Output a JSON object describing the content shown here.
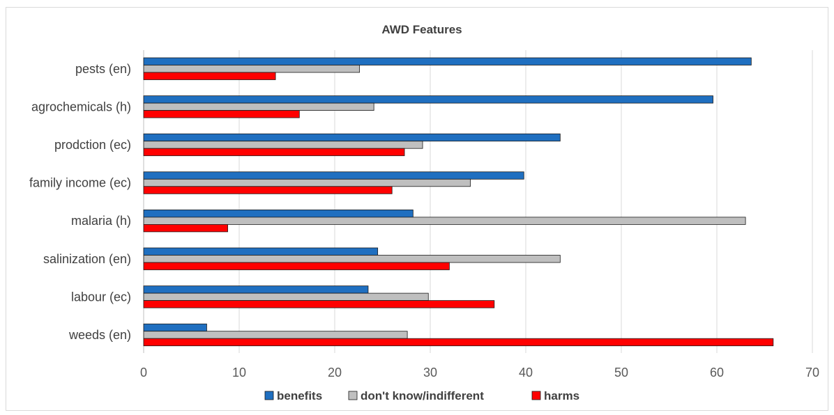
{
  "chart_data": {
    "type": "bar",
    "orientation": "horizontal",
    "title": "AWD Features",
    "xlabel": "",
    "ylabel": "",
    "xlim": [
      0,
      70
    ],
    "x_ticks": [
      "0",
      "10",
      "20",
      "30",
      "40",
      "50",
      "60",
      "70"
    ],
    "grid": "vertical",
    "legend_position": "bottom",
    "categories": [
      "pests (en)",
      "agrochemicals (h)",
      "prodction (ec)",
      "family income (ec)",
      "malaria (h)",
      "salinization (en)",
      "labour (ec)",
      "weeds (en)"
    ],
    "series": [
      {
        "name": "benefits",
        "color": "#1f6fc0",
        "values": [
          63.6,
          59.6,
          43.6,
          39.8,
          28.2,
          24.5,
          23.5,
          6.6
        ]
      },
      {
        "name": "don't know/indifferent",
        "color": "#bfbfbf",
        "values": [
          22.6,
          24.1,
          29.2,
          34.2,
          63.0,
          43.6,
          29.8,
          27.6
        ]
      },
      {
        "name": "harms",
        "color": "#ff0000",
        "values": [
          13.8,
          16.3,
          27.3,
          26.0,
          8.8,
          32.0,
          36.7,
          65.9
        ]
      }
    ]
  }
}
